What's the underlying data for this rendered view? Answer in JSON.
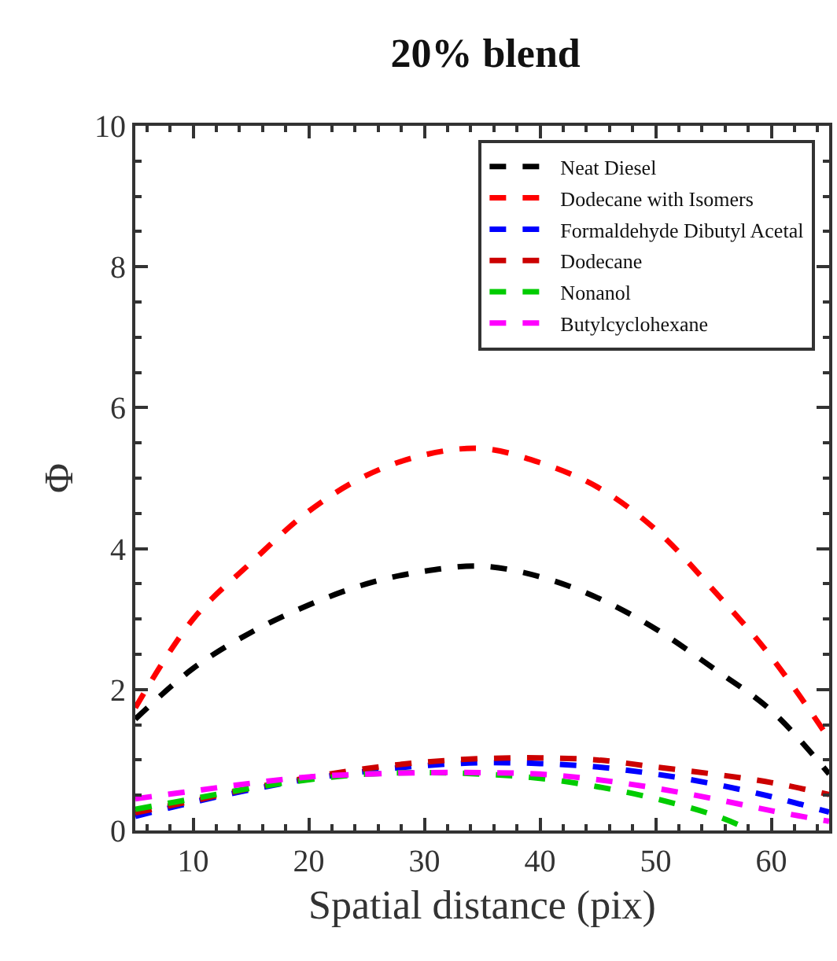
{
  "chart_data": {
    "type": "line",
    "title": "20% blend",
    "xlabel": "Spatial distance (pix)",
    "ylabel": "Φ",
    "xlim": [
      5,
      65
    ],
    "xticks": [
      10,
      20,
      30,
      40,
      50,
      60
    ],
    "ylim": [
      0,
      10
    ],
    "yticks": [
      0,
      2,
      4,
      6,
      8,
      10
    ],
    "legend": "top right",
    "line_style": "dashed",
    "marker": "none",
    "x": [
      5,
      10,
      15,
      20,
      25,
      30,
      35,
      40,
      45,
      50,
      55,
      60,
      65
    ],
    "series": [
      {
        "name": "Neat Diesel",
        "color": "#000000",
        "values": [
          1.58,
          2.3,
          2.81,
          3.2,
          3.5,
          3.68,
          3.75,
          3.6,
          3.3,
          2.86,
          2.3,
          1.7,
          0.8
        ]
      },
      {
        "name": "Dodecane with Isomers",
        "color": "#ff0000",
        "values": [
          1.74,
          3.0,
          3.8,
          4.53,
          5.04,
          5.33,
          5.42,
          5.22,
          4.87,
          4.27,
          3.41,
          2.46,
          1.3
        ]
      },
      {
        "name": "Formaldehyde Dibutyl Acetal",
        "color": "#0000ff",
        "values": [
          0.2,
          0.4,
          0.58,
          0.73,
          0.84,
          0.92,
          0.96,
          0.95,
          0.9,
          0.8,
          0.66,
          0.48,
          0.26
        ]
      },
      {
        "name": "Dodecane",
        "color": "#cc0000",
        "values": [
          0.25,
          0.42,
          0.6,
          0.75,
          0.88,
          0.97,
          1.02,
          1.03,
          1.0,
          0.9,
          0.8,
          0.68,
          0.51
        ]
      },
      {
        "name": "Nonanol",
        "color": "#00cc00",
        "x": [
          5,
          10,
          15,
          20,
          25,
          30,
          35,
          40,
          45,
          50,
          55,
          58.3
        ],
        "values": [
          0.3,
          0.45,
          0.6,
          0.72,
          0.8,
          0.82,
          0.8,
          0.74,
          0.62,
          0.45,
          0.22,
          0.0
        ]
      },
      {
        "name": "Butylcyclohexane",
        "color": "#ff00ff",
        "values": [
          0.45,
          0.56,
          0.67,
          0.76,
          0.8,
          0.82,
          0.82,
          0.8,
          0.72,
          0.6,
          0.45,
          0.28,
          0.13
        ]
      }
    ]
  }
}
